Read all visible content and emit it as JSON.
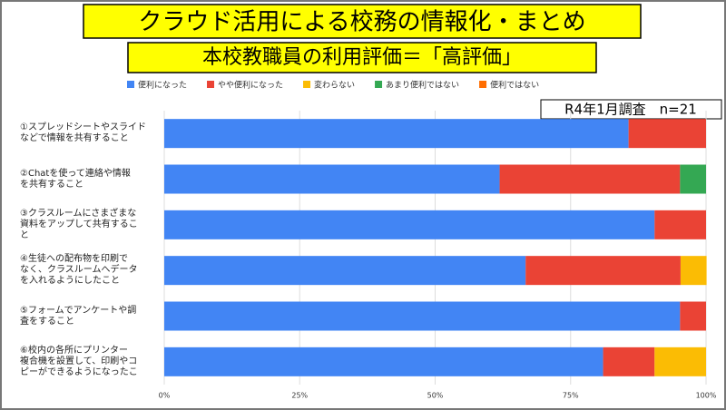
{
  "chart_data": {
    "type": "stacked-barh",
    "title": "クラウド活用による校務の情報化・まとめ",
    "subtitle": "本校教職員の利用評価＝「高評価」",
    "annotation": "R4年1月調査　n=21",
    "categories": [
      "①スプレッドシートやスライド\nなどで情報を共有すること",
      "②Chatを使って連絡や情報\nを共有すること",
      "③クラスルームにさまざまな\n資料をアップして共有するこ\nと",
      "④生徒への配布物を印刷で\nなく、クラスルームへデータ\nを入れるようにしたこと",
      "⑤フォームでアンケートや調\n査をすること",
      "⑥校内の各所にプリンター\n複合機を設置して、印刷やコ\nピーができるようになったこ"
    ],
    "series": [
      {
        "name": "便利になった",
        "color": "#4285f4",
        "values": [
          85.7,
          61.9,
          90.5,
          66.7,
          95.2,
          81.0
        ]
      },
      {
        "name": "やや便利になった",
        "color": "#ea4335",
        "values": [
          14.3,
          33.3,
          9.5,
          28.6,
          4.8,
          9.5
        ]
      },
      {
        "name": "変わらない",
        "color": "#fbbc04",
        "values": [
          0,
          0,
          0,
          4.8,
          0,
          9.5
        ]
      },
      {
        "name": "あまり便利ではない",
        "color": "#34a853",
        "values": [
          0,
          4.8,
          0,
          0,
          0,
          0
        ]
      },
      {
        "name": "便利ではない",
        "color": "#ff6d01",
        "values": [
          0,
          0,
          0,
          0,
          0,
          0
        ]
      }
    ],
    "xlim": [
      0,
      100
    ],
    "xticks": [
      {
        "value": 0,
        "label": "0%"
      },
      {
        "value": 25,
        "label": "25%"
      },
      {
        "value": 50,
        "label": "50%"
      },
      {
        "value": 75,
        "label": "75%"
      },
      {
        "value": 100,
        "label": "100%"
      }
    ],
    "grid": true,
    "legend": "top"
  }
}
